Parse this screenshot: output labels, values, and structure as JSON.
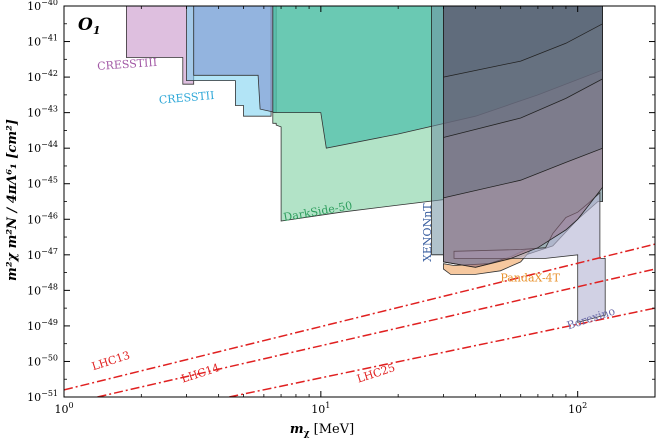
{
  "chart_data": {
    "type": "area",
    "panel_label": "O",
    "panel_label_sub": "1",
    "xlabel_main": "m",
    "xlabel_sub": "χ",
    "xlabel_unit": " [MeV]",
    "ylabel_text": "m²χ m²N / 4πΛ⁶₁ [cm²]",
    "x_scale": "log",
    "y_scale": "log",
    "xlim": [
      1,
      200
    ],
    "ylim": [
      1e-51,
      1e-40
    ],
    "x_ticks": [
      {
        "value": 1,
        "base": "10",
        "exp": "0"
      },
      {
        "value": 10,
        "base": "10",
        "exp": "1"
      },
      {
        "value": 100,
        "base": "10",
        "exp": "2"
      }
    ],
    "y_ticks": [
      {
        "value": -40,
        "base": "10",
        "exp": "−40"
      },
      {
        "value": -41,
        "base": "10",
        "exp": "−41"
      },
      {
        "value": -42,
        "base": "10",
        "exp": "−42"
      },
      {
        "value": -43,
        "base": "10",
        "exp": "−43"
      },
      {
        "value": -44,
        "base": "10",
        "exp": "−44"
      },
      {
        "value": -45,
        "base": "10",
        "exp": "−45"
      },
      {
        "value": -46,
        "base": "10",
        "exp": "−46"
      },
      {
        "value": -47,
        "base": "10",
        "exp": "−47"
      },
      {
        "value": -48,
        "base": "10",
        "exp": "−48"
      },
      {
        "value": -49,
        "base": "10",
        "exp": "−49"
      },
      {
        "value": -50,
        "base": "10",
        "exp": "−50"
      },
      {
        "value": -51,
        "base": "10",
        "exp": "−51"
      }
    ],
    "regions": [
      {
        "name": "CRESSTIII",
        "label_color": "#a35aa6",
        "fill": "#c895c9",
        "stroke": "#333333",
        "fill_opacity": 0.6,
        "label_x": 1.35,
        "label_y": -41.8,
        "label_rotate": -4,
        "points": [
          [
            1.75,
            -40
          ],
          [
            1.75,
            -41.45
          ],
          [
            2.9,
            -41.45
          ],
          [
            2.9,
            -42.2
          ],
          [
            3.2,
            -42.2
          ],
          [
            3.2,
            -40
          ]
        ]
      },
      {
        "name": "CRESSTII",
        "label_color": "#2fa8d8",
        "fill": "#7fd2f0",
        "stroke": "#333333",
        "fill_opacity": 0.6,
        "label_x": 2.35,
        "label_y": -42.75,
        "label_rotate": -5,
        "points": [
          [
            3.0,
            -40
          ],
          [
            3.0,
            -42.1
          ],
          [
            4.65,
            -42.1
          ],
          [
            4.65,
            -42.8
          ],
          [
            5.0,
            -42.8
          ],
          [
            5.0,
            -43.1
          ],
          [
            6.4,
            -43.1
          ],
          [
            6.4,
            -40
          ]
        ]
      },
      {
        "name": "",
        "label_color": "#5577bb",
        "fill": "#8096d0",
        "stroke": "#333333",
        "fill_opacity": 0.62,
        "label_x": 0,
        "label_y": 0,
        "label_rotate": 0,
        "points": [
          [
            3.2,
            -40
          ],
          [
            3.2,
            -41.95
          ],
          [
            5.7,
            -41.95
          ],
          [
            5.8,
            -42.9
          ],
          [
            6.7,
            -43.0
          ],
          [
            6.7,
            -40
          ]
        ]
      },
      {
        "name": "DarkSide-50",
        "label_color": "#2e9e5e",
        "fill": "#7fd0a2",
        "stroke": "#333333",
        "fill_opacity": 0.6,
        "label_x": 7.2,
        "label_y": -46.05,
        "label_rotate": -10,
        "points": [
          [
            6.5,
            -40
          ],
          [
            6.5,
            -43.3
          ],
          [
            6.7,
            -43.3
          ],
          [
            6.7,
            -43.35
          ],
          [
            7.0,
            -43.4
          ],
          [
            7.0,
            -46.05
          ],
          [
            12,
            -45.8
          ],
          [
            20,
            -45.6
          ],
          [
            30,
            -45.45
          ],
          [
            30,
            -40
          ]
        ]
      },
      {
        "name": "",
        "label_color": "#2e9e5e",
        "fill": "#30b5a3",
        "stroke": "#333333",
        "fill_opacity": 0.55,
        "label_x": 0,
        "label_y": 0,
        "label_rotate": 0,
        "points": [
          [
            6.5,
            -40
          ],
          [
            6.5,
            -43.0
          ],
          [
            10.0,
            -43.0
          ],
          [
            10.5,
            -44.0
          ],
          [
            20,
            -43.6
          ],
          [
            40,
            -43.1
          ],
          [
            70,
            -42.5
          ],
          [
            125,
            -41.8
          ],
          [
            125,
            -40
          ]
        ]
      },
      {
        "name": "XENONnT",
        "label_color": "#3a5fa0",
        "fill": "#6f8fa0",
        "stroke": "#222222",
        "fill_opacity": 0.55,
        "label_x": 26.8,
        "label_y": -47.2,
        "label_rotate": -90,
        "points": [
          [
            27,
            -40
          ],
          [
            27,
            -47.0
          ],
          [
            30,
            -47.0
          ],
          [
            30,
            -40
          ]
        ]
      },
      {
        "name": "",
        "label_color": "#3a5fa0",
        "fill": "#5f7d88",
        "stroke": "#222222",
        "fill_opacity": 0.6,
        "label_x": 0,
        "label_y": 0,
        "label_rotate": 0,
        "points": [
          [
            30,
            -40
          ],
          [
            30,
            -47.2
          ],
          [
            40,
            -47.35
          ],
          [
            60,
            -47.05
          ],
          [
            80,
            -46.75
          ],
          [
            100,
            -46.0
          ],
          [
            120,
            -45.5
          ],
          [
            125,
            -45.5
          ],
          [
            125,
            -40
          ]
        ]
      },
      {
        "name": "PandaX-4T",
        "label_color": "#e8922e",
        "fill": "#f3b67f",
        "stroke": "#333333",
        "fill_opacity": 0.75,
        "label_x": 50,
        "label_y": -47.75,
        "label_rotate": 0,
        "points": [
          [
            30,
            -47.25
          ],
          [
            33,
            -47.3
          ],
          [
            45,
            -47.25
          ],
          [
            55,
            -47.05
          ],
          [
            63,
            -46.85
          ],
          [
            66,
            -46.85
          ],
          [
            60,
            -47.2
          ],
          [
            50,
            -47.45
          ],
          [
            40,
            -47.55
          ],
          [
            32,
            -47.55
          ],
          [
            30,
            -47.4
          ]
        ]
      },
      {
        "name": "Borexino",
        "label_color": "#6a6aa8",
        "fill": "#b9b8d6",
        "stroke": "#333333",
        "fill_opacity": 0.65,
        "label_x": 92,
        "label_y": -49.1,
        "label_rotate": -18,
        "points": [
          [
            33,
            -46.9
          ],
          [
            60,
            -46.85
          ],
          [
            75,
            -46.8
          ],
          [
            80,
            -46.4
          ],
          [
            90,
            -45.95
          ],
          [
            100,
            -45.8
          ],
          [
            110,
            -45.55
          ],
          [
            120,
            -45.3
          ],
          [
            122,
            -45.25
          ],
          [
            122,
            -47.1
          ],
          [
            128,
            -47.1
          ],
          [
            128,
            -48.7
          ],
          [
            120,
            -48.75
          ],
          [
            100,
            -48.9
          ],
          [
            100,
            -47.0
          ],
          [
            75,
            -47.1
          ],
          [
            33,
            -47.1
          ]
        ]
      },
      {
        "name": "",
        "label_color": "#7a4a60",
        "fill": "#8f6780",
        "stroke": "#222222",
        "fill_opacity": 0.5,
        "label_x": 0,
        "label_y": 0,
        "label_rotate": 0,
        "points": [
          [
            30,
            -40
          ],
          [
            30,
            -47.2
          ],
          [
            40,
            -47.35
          ],
          [
            55,
            -47.1
          ],
          [
            70,
            -46.8
          ],
          [
            90,
            -46.3
          ],
          [
            100,
            -46.0
          ],
          [
            112,
            -45.55
          ],
          [
            125,
            -45.1
          ],
          [
            125,
            -40
          ]
        ]
      },
      {
        "name": "",
        "label_color": "#333333",
        "fill": "#4e5e70",
        "stroke": "#222222",
        "fill_opacity": 0.35,
        "label_x": 0,
        "label_y": 0,
        "label_rotate": 0,
        "points": [
          [
            30,
            -40
          ],
          [
            30,
            -45.4
          ],
          [
            60,
            -44.9
          ],
          [
            90,
            -44.4
          ],
          [
            125,
            -44.0
          ],
          [
            125,
            -40
          ]
        ]
      },
      {
        "name": "",
        "label_color": "#333333",
        "fill": "#4e5e70",
        "stroke": "#222222",
        "fill_opacity": 0.25,
        "label_x": 0,
        "label_y": 0,
        "label_rotate": 0,
        "points": [
          [
            30,
            -40
          ],
          [
            30,
            -43.7
          ],
          [
            60,
            -43.15
          ],
          [
            90,
            -42.6
          ],
          [
            125,
            -42.05
          ],
          [
            125,
            -40
          ]
        ]
      },
      {
        "name": "",
        "label_color": "#333333",
        "fill": "#4e5e70",
        "stroke": "#222222",
        "fill_opacity": 0.25,
        "label_x": 0,
        "label_y": 0,
        "label_rotate": 0,
        "points": [
          [
            30,
            -40
          ],
          [
            30,
            -42.0
          ],
          [
            60,
            -41.55
          ],
          [
            90,
            -41.05
          ],
          [
            125,
            -40.5
          ],
          [
            125,
            -40
          ]
        ]
      }
    ],
    "lines": [
      {
        "name": "LHC13",
        "color": "#e02020",
        "x": [
          1,
          200
        ],
        "y": [
          -50.8,
          -46.7
        ],
        "label_x": 1.3,
        "label_y": -50.25,
        "label_rotate": -18
      },
      {
        "name": "LHC14",
        "color": "#e02020",
        "x": [
          1.35,
          200
        ],
        "y": [
          -51,
          -47.4
        ],
        "label_x": 2.9,
        "label_y": -50.6,
        "label_rotate": -18
      },
      {
        "name": "LHC25",
        "color": "#e02020",
        "x": [
          4.4,
          200
        ],
        "y": [
          -51,
          -48.5
        ],
        "label_x": 14,
        "label_y": -50.6,
        "label_rotate": -18
      }
    ]
  }
}
